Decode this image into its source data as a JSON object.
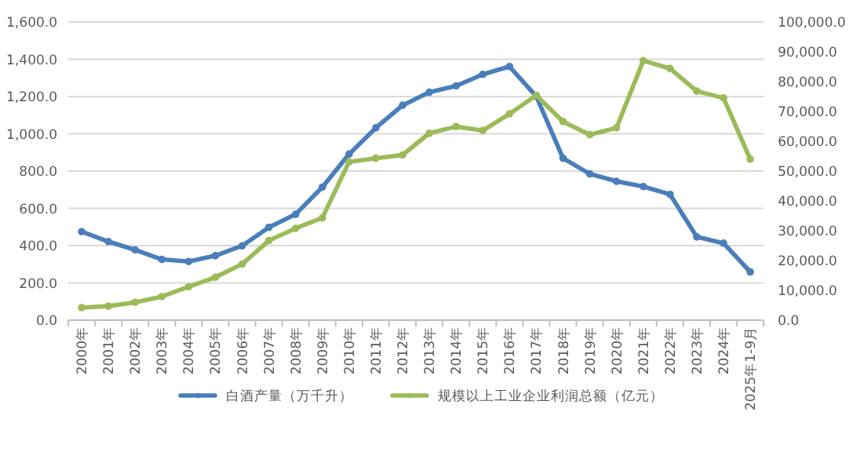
{
  "chart_data": {
    "type": "line",
    "categories": [
      "2000年",
      "2001年",
      "2002年",
      "2003年",
      "2004年",
      "2005年",
      "2006年",
      "2007年",
      "2008年",
      "2009年",
      "2010年",
      "2011年",
      "2012年",
      "2013年",
      "2014年",
      "2015年",
      "2016年",
      "2017年",
      "2018年",
      "2019年",
      "2020年",
      "2021年",
      "2022年",
      "2023年",
      "2024年",
      "2025年1-9月"
    ],
    "series": [
      {
        "name": "白酒产量（万千升）",
        "color": "#4a7ebb",
        "values": [
          475,
          422,
          377,
          326,
          315,
          346,
          399,
          498,
          568,
          714,
          891,
          1032,
          1153,
          1223,
          1257,
          1319,
          1361,
          1201,
          869,
          785,
          745,
          717,
          675,
          447,
          413,
          259
        ]
      },
      {
        "name": "规模以上工业企业利润总额（亿元）",
        "color": "#9bbb59",
        "axis": "y2",
        "values": [
          4200,
          4700,
          6000,
          7900,
          11200,
          14400,
          18800,
          26700,
          30800,
          34300,
          53100,
          54300,
          55400,
          62700,
          64900,
          63600,
          69200,
          75400,
          66600,
          62200,
          64500,
          87000,
          84400,
          76800,
          74500,
          54000
        ]
      }
    ],
    "ylim": [
      0,
      1600
    ],
    "yticks": [
      {
        "value": 0,
        "label": "0.0"
      },
      {
        "value": 200,
        "label": "200.0"
      },
      {
        "value": 400,
        "label": "400.0"
      },
      {
        "value": 600,
        "label": "600.0"
      },
      {
        "value": 800,
        "label": "800.0"
      },
      {
        "value": 1000,
        "label": "1,000.0"
      },
      {
        "value": 1200,
        "label": "1,200.0"
      },
      {
        "value": 1400,
        "label": "1,400.0"
      },
      {
        "value": 1600,
        "label": "1,600.0"
      }
    ],
    "y2lim": [
      0,
      100000
    ],
    "y2ticks": [
      {
        "value": 0,
        "label": "0.0"
      },
      {
        "value": 10000,
        "label": "10,000.0"
      },
      {
        "value": 20000,
        "label": "20,000.0"
      },
      {
        "value": 30000,
        "label": "30,000.0"
      },
      {
        "value": 40000,
        "label": "40,000.0"
      },
      {
        "value": 50000,
        "label": "50,000.0"
      },
      {
        "value": 60000,
        "label": "60,000.0"
      },
      {
        "value": 70000,
        "label": "70,000.0"
      },
      {
        "value": 80000,
        "label": "80,000.0"
      },
      {
        "value": 90000,
        "label": "90,000.0"
      },
      {
        "value": 100000,
        "label": "100,000.0"
      }
    ],
    "grid": "y",
    "legend": "bottom",
    "marker": "circle"
  }
}
